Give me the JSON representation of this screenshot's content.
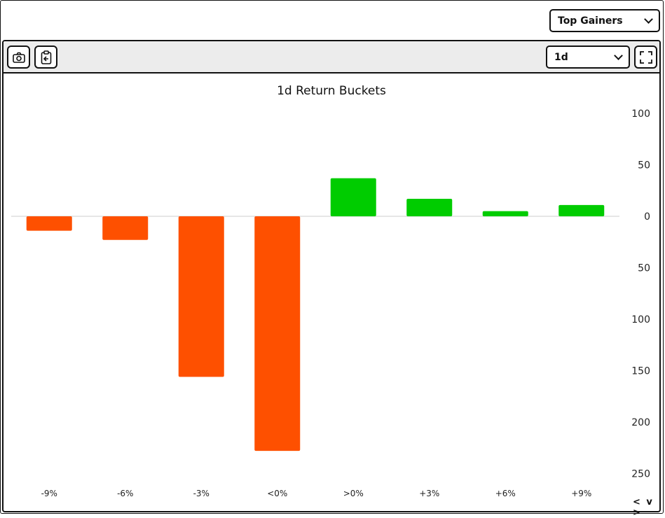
{
  "top_select": {
    "value": "Top Gainers"
  },
  "toolbar": {
    "range_value": "1d",
    "icons": [
      "camera-icon",
      "clipboard-icon",
      "fullscreen-icon"
    ]
  },
  "nav": {
    "label": "< v >"
  },
  "chart_data": {
    "type": "bar",
    "title": "1d Return Buckets",
    "categories": [
      "-9%",
      "-6%",
      "-3%",
      "<0%",
      ">0%",
      "+3%",
      "+6%",
      "+9%"
    ],
    "values": [
      -14,
      -23,
      -156,
      -228,
      37,
      17,
      5,
      11
    ],
    "y_ticks": [
      {
        "value": 100,
        "label": "100"
      },
      {
        "value": 50,
        "label": "50"
      },
      {
        "value": 0,
        "label": "0"
      },
      {
        "value": -50,
        "label": "50"
      },
      {
        "value": -100,
        "label": "100"
      },
      {
        "value": -150,
        "label": "150"
      },
      {
        "value": -200,
        "label": "200"
      },
      {
        "value": -250,
        "label": "250"
      }
    ],
    "ylim": [
      -250,
      100
    ],
    "colors": {
      "negative": "#fe5000",
      "positive": "#00cc00",
      "zero_line": "#cccccc"
    },
    "axis_position": "right",
    "grid": false
  }
}
